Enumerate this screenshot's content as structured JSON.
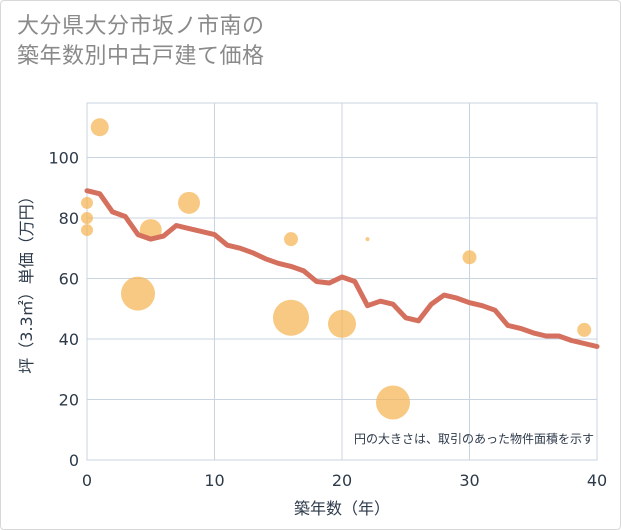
{
  "chart_data": {
    "type": "scatter",
    "title_lines": [
      "大分県大分市坂ノ市南の",
      "築年数別中古戸建て価格"
    ],
    "xlabel": "築年数（年）",
    "ylabel": "坪（3.3㎡）単価（万円）",
    "xlim": [
      0,
      40
    ],
    "ylim": [
      0,
      118
    ],
    "xticks": [
      0,
      10,
      20,
      30,
      40
    ],
    "yticks": [
      0,
      20,
      40,
      60,
      80,
      100
    ],
    "grid": true,
    "note": "円の大きさは、取引のあった物件面積を示す",
    "colors": {
      "points": "#f5b24e",
      "line": "#d4705d",
      "grid": "#c8d4e0",
      "text": "#2d3a4a"
    },
    "scatter": [
      {
        "x": 0,
        "y": 85,
        "size": 6
      },
      {
        "x": 0,
        "y": 80,
        "size": 6
      },
      {
        "x": 0,
        "y": 76,
        "size": 6
      },
      {
        "x": 1,
        "y": 110,
        "size": 9
      },
      {
        "x": 4,
        "y": 55,
        "size": 17
      },
      {
        "x": 5,
        "y": 76,
        "size": 11
      },
      {
        "x": 8,
        "y": 85,
        "size": 11
      },
      {
        "x": 16,
        "y": 73,
        "size": 7
      },
      {
        "x": 16,
        "y": 47,
        "size": 18
      },
      {
        "x": 20,
        "y": 45,
        "size": 14
      },
      {
        "x": 22,
        "y": 73,
        "size": 2
      },
      {
        "x": 24,
        "y": 19,
        "size": 17
      },
      {
        "x": 30,
        "y": 67,
        "size": 7
      },
      {
        "x": 39,
        "y": 43,
        "size": 7
      }
    ],
    "series": [
      {
        "x": [
          0,
          1,
          2,
          3,
          4,
          5,
          6,
          7,
          8,
          9,
          10,
          11,
          12,
          13,
          14,
          15,
          16,
          17,
          18,
          19,
          20,
          21,
          22,
          23,
          24,
          25,
          26,
          27,
          28,
          29,
          30,
          31,
          32,
          33,
          34,
          35,
          36,
          37,
          38,
          39,
          40
        ],
        "y": [
          89,
          88,
          82,
          80.5,
          74.5,
          73,
          74,
          77.5,
          76.5,
          75.5,
          74.5,
          71,
          70,
          68.5,
          66.5,
          65,
          64,
          62.5,
          59,
          58.5,
          60.5,
          59,
          51,
          52.5,
          51.5,
          47,
          46,
          51.5,
          54.5,
          53.5,
          52,
          51,
          49.5,
          44.5,
          43.5,
          42,
          41,
          41,
          39.5,
          38.5,
          37.5
        ]
      }
    ]
  }
}
